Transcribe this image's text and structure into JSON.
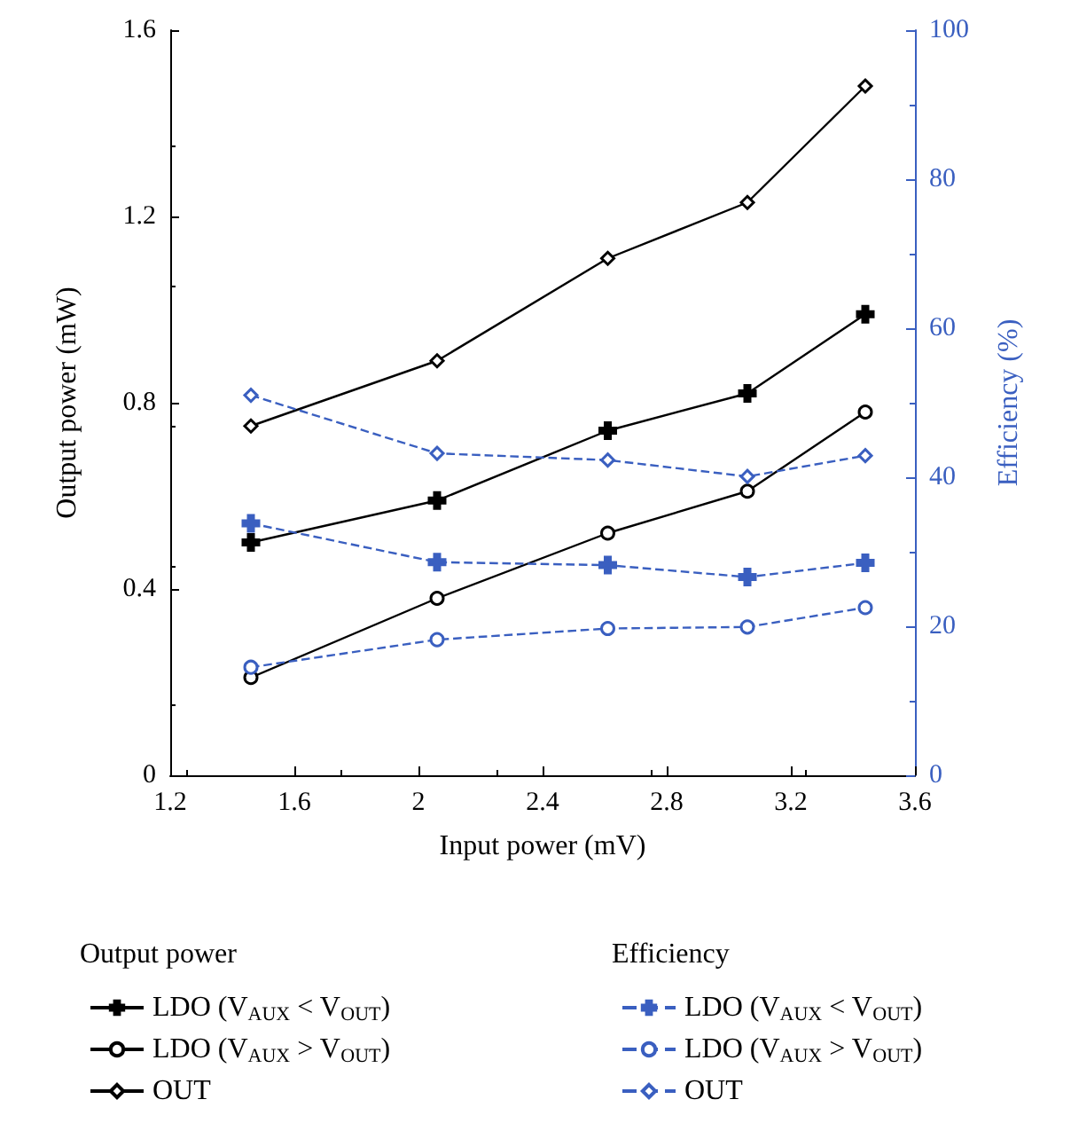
{
  "chart_data": {
    "type": "line",
    "xlabel": "Input power (mV)",
    "ylabel": "Output power (mW)",
    "y2label": "Efficiency (%)",
    "x": [
      1.46,
      2.06,
      2.61,
      3.06,
      3.44
    ],
    "xlim": [
      1.2,
      3.6
    ],
    "xticks": [
      1.2,
      1.6,
      2.0,
      2.4,
      2.8,
      3.2,
      3.6
    ],
    "ylim": [
      0,
      1.6
    ],
    "yticks": [
      0,
      0.4,
      0.8,
      1.2,
      1.6
    ],
    "y2lim": [
      0,
      100
    ],
    "y2ticks": [
      0,
      20,
      40,
      60,
      80,
      100
    ],
    "legend": "bottom",
    "grid": false,
    "annotations": [
      "Output power",
      "Efficiency"
    ],
    "series": [
      {
        "name": "LDO (V$_{AUX}$ < V$_{OUT}$)",
        "color": "#000000",
        "marker": "cross",
        "line_style": "solid",
        "values": [
          0.5,
          0.59,
          0.74,
          0.82,
          0.99
        ]
      },
      {
        "name": "LDO (V$_{AUX}$ > V$_{OUT}$)",
        "color": "#000000",
        "marker": "circle",
        "line_style": "solid",
        "values": [
          0.21,
          0.38,
          0.52,
          0.61,
          0.78
        ]
      },
      {
        "name": "OUT",
        "color": "#000000",
        "marker": "diamond",
        "line_style": "solid",
        "values": [
          0.75,
          0.89,
          1.11,
          1.23,
          1.48
        ]
      },
      {
        "name": "LDO (V$_{AUX}$ < V$_{OUT}$)",
        "color": "#3a5fc0",
        "marker": "cross",
        "line_style": "dashed",
        "axis": "y2",
        "values": [
          33.8,
          28.6,
          28.2,
          26.6,
          28.5
        ]
      },
      {
        "name": "LDO (V$_{AUX}$ > V$_{OUT}$)",
        "color": "#3a5fc0",
        "marker": "circle",
        "line_style": "dashed",
        "axis": "y2",
        "values": [
          14.5,
          18.2,
          19.7,
          19.9,
          22.5
        ]
      },
      {
        "name": "OUT",
        "color": "#3a5fc0",
        "marker": "diamond",
        "line_style": "dashed",
        "axis": "y2",
        "values": [
          51.0,
          43.2,
          42.3,
          40.1,
          42.9
        ]
      }
    ]
  }
}
